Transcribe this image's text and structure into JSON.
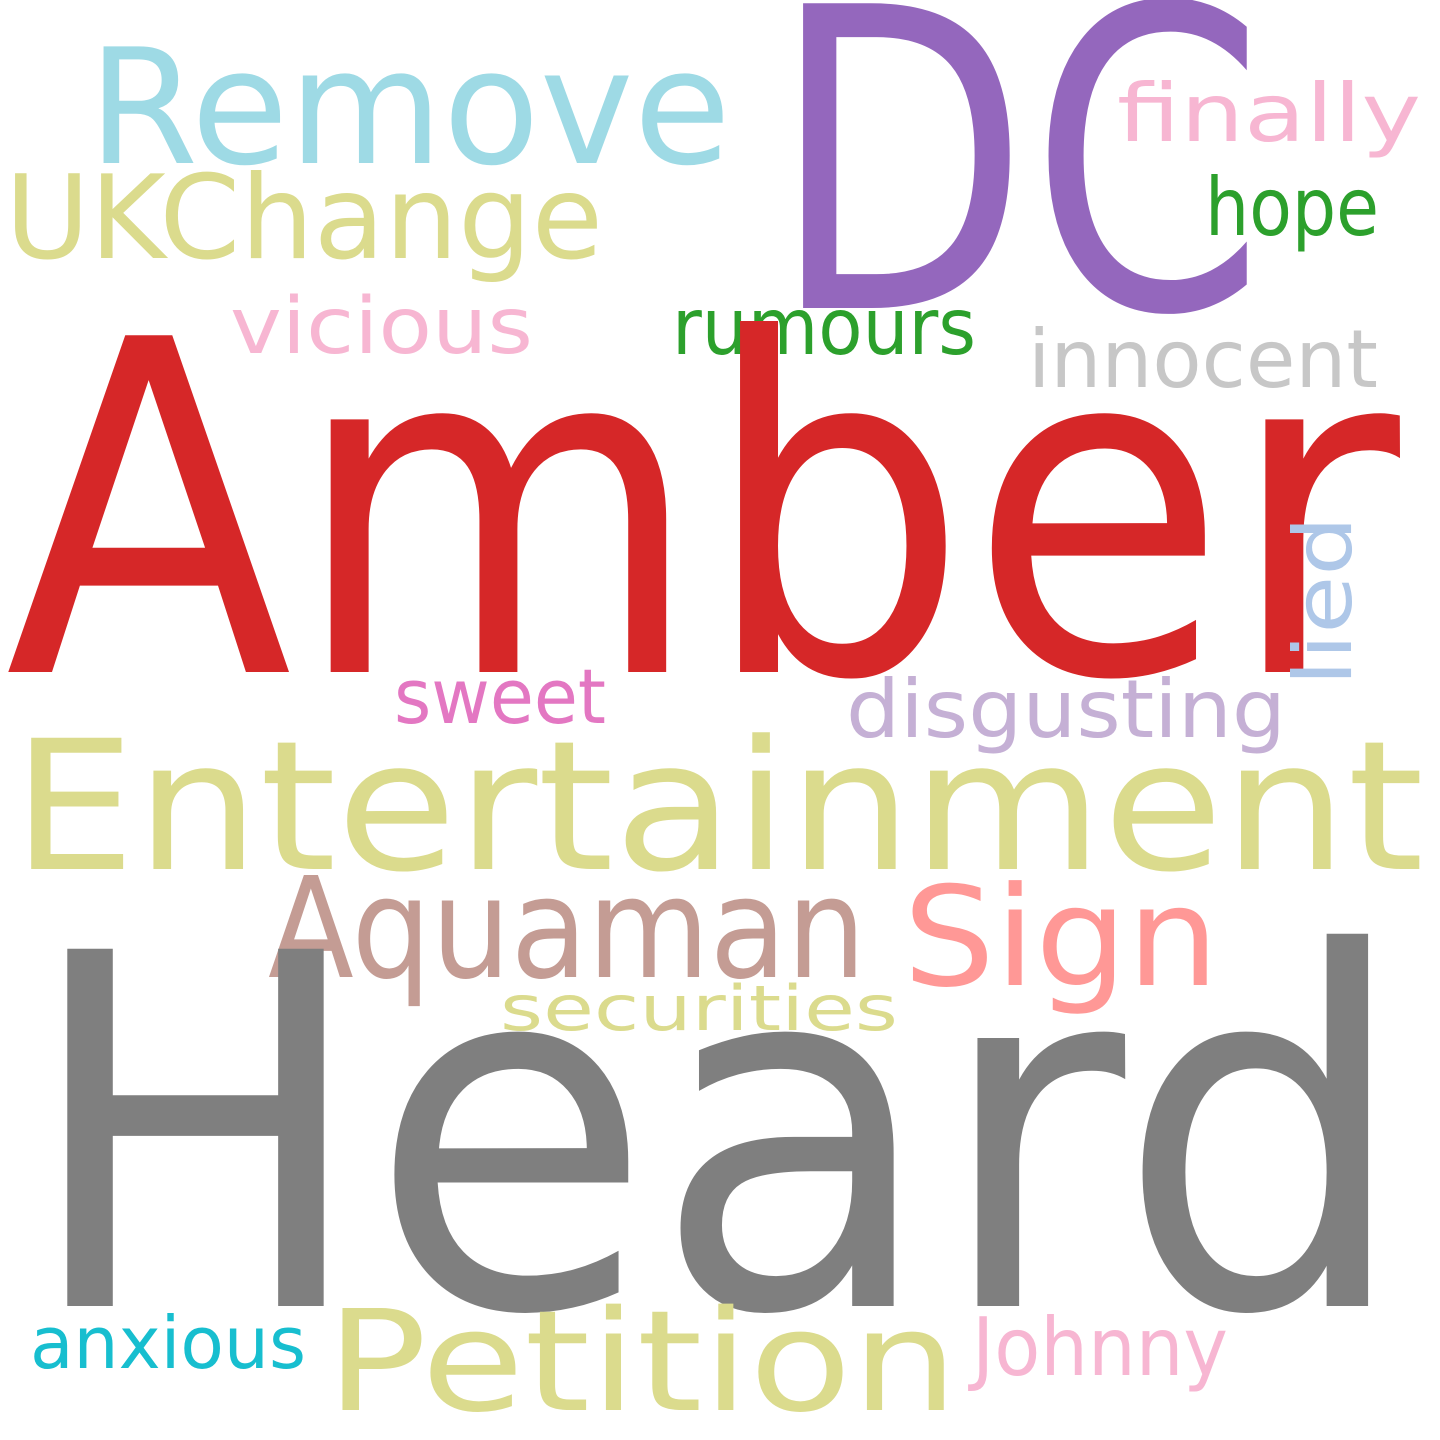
{
  "words": [
    {
      "text": "DC",
      "color": "#9467bd"
    },
    {
      "text": "Remove",
      "color": "#9edae5"
    },
    {
      "text": "finally",
      "color": "#f7b6d2"
    },
    {
      "text": "UKChange",
      "color": "#dbdb8d"
    },
    {
      "text": "hope",
      "color": "#2ca02c"
    },
    {
      "text": "vicious",
      "color": "#f7b6d2"
    },
    {
      "text": "rumours",
      "color": "#2ca02c"
    },
    {
      "text": "innocent",
      "color": "#c7c7c7"
    },
    {
      "text": "Amber",
      "color": "#d62728"
    },
    {
      "text": "lied",
      "color": "#aec7e8"
    },
    {
      "text": "sweet",
      "color": "#e377c2"
    },
    {
      "text": "disgusting",
      "color": "#c5b0d5"
    },
    {
      "text": "Entertainment",
      "color": "#dbdb8d"
    },
    {
      "text": "Aquaman",
      "color": "#c49c94"
    },
    {
      "text": "Sign",
      "color": "#ff9896"
    },
    {
      "text": "securities",
      "color": "#dbdb8d"
    },
    {
      "text": "Heard",
      "color": "#7f7f7f"
    },
    {
      "text": "anxious",
      "color": "#17becf"
    },
    {
      "text": "Petition",
      "color": "#dbdb8d"
    },
    {
      "text": "Johnny",
      "color": "#f7b6d2"
    }
  ]
}
